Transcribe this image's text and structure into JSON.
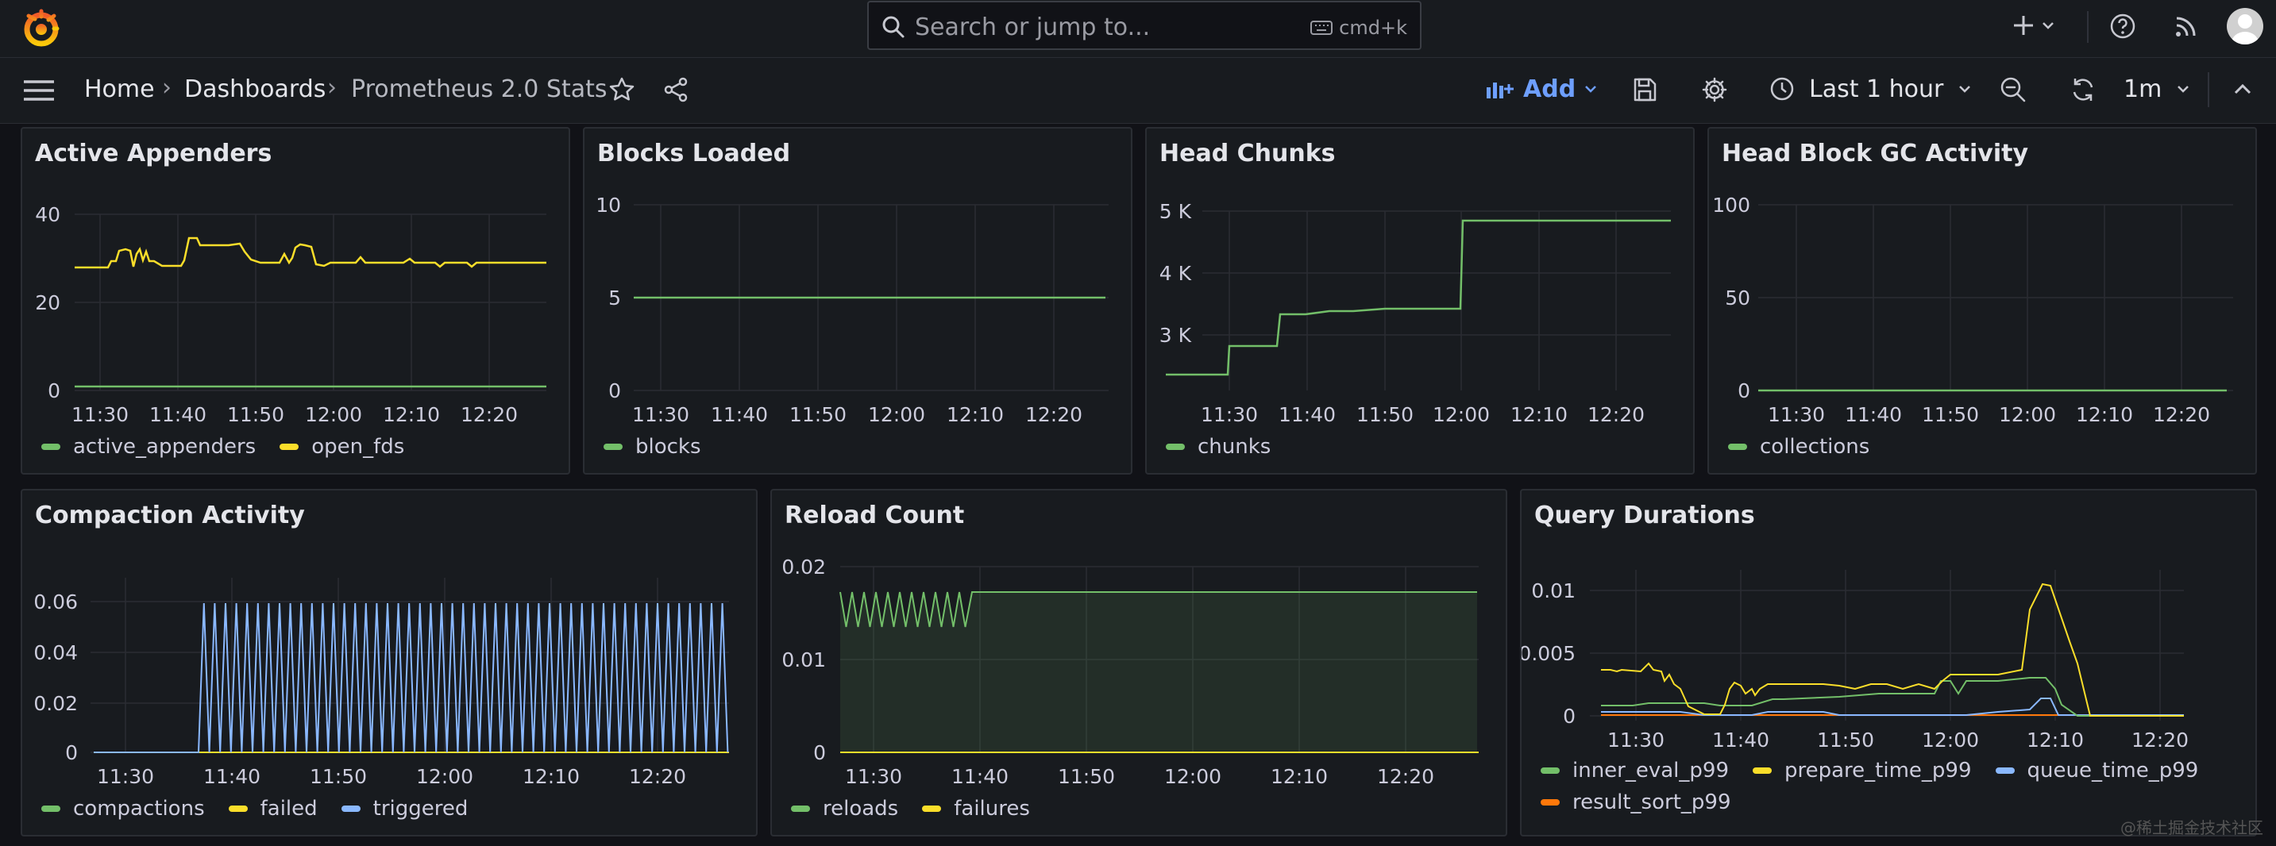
{
  "topbar": {
    "search_placeholder": "Search or jump to...",
    "shortcut": "cmd+k"
  },
  "nav": {
    "home": "Home",
    "dashboards": "Dashboards",
    "current": "Prometheus 2.0 Stats",
    "add": "Add",
    "time_range": "Last 1 hour",
    "refresh_interval": "1m"
  },
  "colors": {
    "green": "#73bf69",
    "yellow": "#fade2a",
    "blue": "#8ab8ff",
    "orange": "#ff780a"
  },
  "panels": [
    {
      "title": "Active Appenders",
      "ticks": [
        "40",
        "20",
        "0"
      ],
      "x": [
        "11:30",
        "11:40",
        "11:50",
        "12:00",
        "12:10",
        "12:20"
      ],
      "legend": [
        {
          "name": "active_appenders",
          "color": "#73bf69"
        },
        {
          "name": "open_fds",
          "color": "#fade2a"
        }
      ]
    },
    {
      "title": "Blocks Loaded",
      "ticks": [
        "10",
        "5",
        "0"
      ],
      "x": [
        "11:30",
        "11:40",
        "11:50",
        "12:00",
        "12:10",
        "12:20"
      ],
      "legend": [
        {
          "name": "blocks",
          "color": "#73bf69"
        }
      ]
    },
    {
      "title": "Head Chunks",
      "ticks": [
        "5 K",
        "4 K",
        "3 K"
      ],
      "x": [
        "11:30",
        "11:40",
        "11:50",
        "12:00",
        "12:10",
        "12:20"
      ],
      "legend": [
        {
          "name": "chunks",
          "color": "#73bf69"
        }
      ]
    },
    {
      "title": "Head Block GC Activity",
      "ticks": [
        "100",
        "50",
        "0"
      ],
      "x": [
        "11:30",
        "11:40",
        "11:50",
        "12:00",
        "12:10",
        "12:20"
      ],
      "legend": [
        {
          "name": "collections",
          "color": "#73bf69"
        }
      ]
    },
    {
      "title": "Compaction Activity",
      "ticks": [
        "0.06",
        "0.04",
        "0.02",
        "0"
      ],
      "x": [
        "11:30",
        "11:40",
        "11:50",
        "12:00",
        "12:10",
        "12:20"
      ],
      "legend": [
        {
          "name": "compactions",
          "color": "#73bf69"
        },
        {
          "name": "failed",
          "color": "#fade2a"
        },
        {
          "name": "triggered",
          "color": "#8ab8ff"
        }
      ]
    },
    {
      "title": "Reload Count",
      "ticks": [
        "0.02",
        "0.01",
        "0"
      ],
      "x": [
        "11:30",
        "11:40",
        "11:50",
        "12:00",
        "12:10",
        "12:20"
      ],
      "legend": [
        {
          "name": "reloads",
          "color": "#73bf69"
        },
        {
          "name": "failures",
          "color": "#fade2a"
        }
      ]
    },
    {
      "title": "Query Durations",
      "ticks": [
        "0.01",
        "0.005",
        "0"
      ],
      "x": [
        "11:30",
        "11:40",
        "11:50",
        "12:00",
        "12:10",
        "12:20"
      ],
      "legend": [
        {
          "name": "inner_eval_p99",
          "color": "#73bf69"
        },
        {
          "name": "prepare_time_p99",
          "color": "#fade2a"
        },
        {
          "name": "queue_time_p99",
          "color": "#8ab8ff"
        },
        {
          "name": "result_sort_p99",
          "color": "#ff780a"
        }
      ]
    }
  ],
  "chart_data": [
    {
      "type": "line",
      "title": "Active Appenders",
      "ylim": [
        0,
        40
      ],
      "x": [
        "11:27",
        "11:30",
        "11:33",
        "11:35",
        "11:37",
        "11:38",
        "11:40",
        "11:42",
        "11:45",
        "11:48",
        "11:50",
        "11:52",
        "11:55",
        "11:58",
        "12:00",
        "12:02",
        "12:05",
        "12:10",
        "12:15",
        "12:20",
        "12:26"
      ],
      "series": [
        {
          "name": "active_appenders",
          "values": [
            1,
            1,
            1,
            1,
            1,
            1,
            1,
            1,
            1,
            1,
            1,
            1,
            1,
            1,
            1,
            1,
            1,
            1,
            1,
            1,
            1
          ]
        },
        {
          "name": "open_fds",
          "values": [
            28,
            28,
            30,
            32,
            28,
            30,
            37,
            35,
            35,
            36,
            30,
            30,
            30,
            35,
            36,
            30,
            30,
            30,
            30,
            30,
            30
          ]
        }
      ]
    },
    {
      "type": "line",
      "title": "Blocks Loaded",
      "ylim": [
        0,
        10
      ],
      "x": [
        "11:27",
        "11:30",
        "11:40",
        "11:50",
        "12:00",
        "12:10",
        "12:20",
        "12:26"
      ],
      "series": [
        {
          "name": "blocks",
          "values": [
            5,
            5,
            5,
            5,
            5,
            5,
            5,
            5
          ]
        }
      ]
    },
    {
      "type": "line",
      "title": "Head Chunks",
      "ylim": [
        2500,
        5000
      ],
      "x": [
        "11:27",
        "11:30",
        "11:33",
        "11:36",
        "11:40",
        "11:45",
        "11:50",
        "11:55",
        "12:00",
        "12:01",
        "12:10",
        "12:20",
        "12:26"
      ],
      "series": [
        {
          "name": "chunks",
          "values": [
            2400,
            2400,
            2850,
            2850,
            3350,
            3400,
            3430,
            3440,
            3440,
            4860,
            4860,
            4860,
            4860
          ]
        }
      ]
    },
    {
      "type": "line",
      "title": "Head Block GC Activity",
      "ylim": [
        0,
        100
      ],
      "x": [
        "11:27",
        "11:30",
        "11:40",
        "11:50",
        "12:00",
        "12:10",
        "12:20",
        "12:26"
      ],
      "series": [
        {
          "name": "collections",
          "values": [
            0,
            0,
            0,
            0,
            0,
            0,
            0,
            0
          ]
        }
      ]
    },
    {
      "type": "line",
      "title": "Compaction Activity",
      "ylim": [
        0,
        0.07
      ],
      "x": [
        "11:27",
        "11:37",
        "12:26"
      ],
      "series": [
        {
          "name": "compactions",
          "values": [
            0,
            0,
            0
          ]
        },
        {
          "name": "failed",
          "values": [
            0,
            0,
            0
          ]
        },
        {
          "name": "triggered",
          "values": [
            0,
            0.067,
            0.067
          ],
          "note_pattern": "oscillates 0 to 0.067 from 11:37 onward"
        }
      ]
    },
    {
      "type": "area",
      "title": "Reload Count",
      "ylim": [
        0,
        0.02
      ],
      "x": [
        "11:27",
        "11:40",
        "11:41",
        "12:26"
      ],
      "series": [
        {
          "name": "reloads",
          "values": [
            0.015,
            0.0175,
            0.0175,
            0.0175
          ]
        },
        {
          "name": "failures",
          "values": [
            0,
            0,
            0,
            0
          ]
        }
      ]
    },
    {
      "type": "line",
      "title": "Query Durations",
      "ylim": [
        0,
        0.011
      ],
      "x": [
        "11:27",
        "11:30",
        "11:34",
        "11:38",
        "11:40",
        "11:43",
        "11:47",
        "11:52",
        "11:57",
        "12:02",
        "12:04",
        "12:09",
        "12:11",
        "12:13",
        "12:16",
        "12:26"
      ],
      "series": [
        {
          "name": "inner_eval_p99",
          "values": [
            0.0008,
            0.0008,
            0.001,
            0.001,
            0.0008,
            0.0008,
            0.0015,
            0.0015,
            0.002,
            0.002,
            0.003,
            0.003,
            0.0025,
            0.0,
            0.0,
            0.0
          ]
        },
        {
          "name": "prepare_time_p99",
          "values": [
            0.004,
            0.004,
            0.0045,
            0.001,
            0.0003,
            0.004,
            0.0035,
            0.0035,
            0.0035,
            0.0035,
            0.0055,
            0.0055,
            0.0105,
            0.004,
            0.0,
            0.0
          ]
        },
        {
          "name": "queue_time_p99",
          "values": [
            0.0003,
            0.0003,
            0.0003,
            0.0,
            0.0,
            0.0003,
            0.0003,
            0.0,
            0.0,
            0.0,
            0.0003,
            0.0005,
            0.0018,
            0.0,
            0.0,
            0.0
          ]
        },
        {
          "name": "result_sort_p99",
          "values": [
            0.0,
            0.0,
            0.0,
            0.0,
            0.0,
            0.0,
            0.0,
            0.0,
            0.0,
            0.0,
            0.0,
            0.0,
            0.0,
            0.0,
            0.0,
            0.0
          ]
        }
      ]
    }
  ],
  "watermark": "@稀土掘金技术社区"
}
